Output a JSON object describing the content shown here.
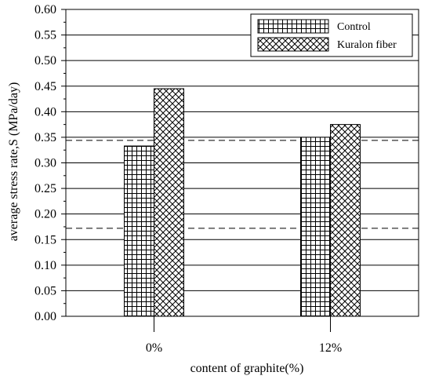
{
  "chart_data": {
    "type": "bar",
    "title": "",
    "xlabel": "content of graphite(%)",
    "ylabel": "average stress rate,S  (MPa/day)",
    "categories": [
      "0%",
      "12%"
    ],
    "series": [
      {
        "name": "Control",
        "values": [
          0.333,
          0.35
        ],
        "pattern": "grid"
      },
      {
        "name": "Kuralon fiber",
        "values": [
          0.445,
          0.375
        ],
        "pattern": "crosshatch"
      }
    ],
    "ylim": [
      0,
      0.6
    ],
    "yticks": [
      "0.00",
      "0.05",
      "0.10",
      "0.15",
      "0.20",
      "0.25",
      "0.30",
      "0.35",
      "0.40",
      "0.45",
      "0.50",
      "0.55",
      "0.60"
    ],
    "reference_lines": [
      0.172,
      0.344
    ],
    "reference_line_style": "dashed",
    "grid": "horizontal",
    "legend": "top-right",
    "colors": {
      "background": "#ffffff",
      "ink": "#000000"
    }
  }
}
